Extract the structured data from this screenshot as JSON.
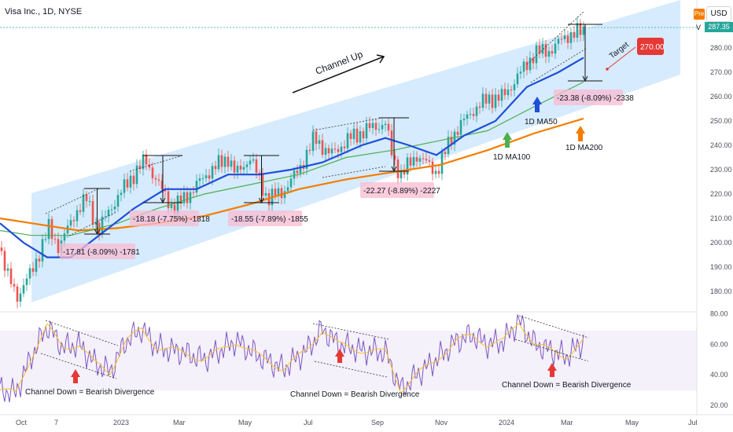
{
  "header": {
    "symbol": "Visa Inc., 1D, NYSE",
    "currency": "USD",
    "pre_badge": "Pre",
    "v_label": "V",
    "last_price": "287.35"
  },
  "chart_data": {
    "type": "candlestick",
    "title": "Visa Inc., 1D, NYSE",
    "x_ticks": [
      "Oct",
      "7",
      "2023",
      "Mar",
      "May",
      "Jul",
      "Sep",
      "Nov",
      "2024",
      "Mar",
      "May",
      "Jul"
    ],
    "y_ticks": [
      180,
      190,
      200,
      210,
      220,
      230,
      240,
      250,
      260,
      270,
      280
    ],
    "ylim": [
      172,
      290
    ],
    "last_price": 287.35,
    "target": 270.0,
    "target_label": "270.00",
    "series": [
      {
        "name": "1D MA50",
        "color": "#1e4fd8"
      },
      {
        "name": "1D MA100",
        "color": "#4caf50"
      },
      {
        "name": "1D MA200",
        "color": "#f57c00"
      }
    ],
    "annotations": {
      "channel_label": "Channel Up",
      "target_label": "Target",
      "ma50": "1D MA50",
      "ma100": "1D MA100",
      "ma200": "1D MA200",
      "drops": [
        "-17.81 (-8.09%) -1781",
        "-18.18 (-7.75%) -1818",
        "-18.55 (-7.89%) -1855",
        "-22.27 (-8.89%) -2227",
        "-23.38 (-8.09%) -2338"
      ]
    },
    "rsi": {
      "y_ticks": [
        20,
        40,
        60,
        80
      ],
      "ylim": [
        18,
        82
      ],
      "divergence_labels": [
        "Channel Down = Bearish Divergence",
        "Channel Down = Bearish Divergence",
        "Channel Down = Bearish Divergence"
      ]
    }
  }
}
